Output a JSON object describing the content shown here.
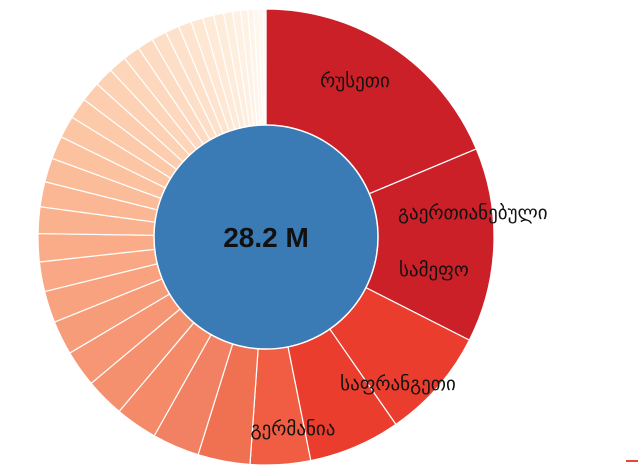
{
  "chart_data": {
    "type": "pie",
    "center_value": "28.2 M",
    "slices": [
      {
        "label": "რუსეთი",
        "value": 5.26,
        "color": "#cb2027"
      },
      {
        "label": "გაერთიანებული სამეფო",
        "value": 3.88,
        "color": "#cb2027"
      },
      {
        "label": "საფრანგეთი",
        "value": 2.22,
        "color": "#ea3d2d"
      },
      {
        "label": "გერმანია",
        "value": 1.83,
        "color": "#ea3d2d"
      },
      {
        "label": "",
        "value": 1.2,
        "color": "#f05d42"
      },
      {
        "label": "",
        "value": 1.04,
        "color": "#f07152"
      },
      {
        "label": "",
        "value": 0.94,
        "color": "#f28062"
      },
      {
        "label": "",
        "value": 0.84,
        "color": "#f48a68"
      },
      {
        "label": "",
        "value": 0.78,
        "color": "#f5906e"
      },
      {
        "label": "",
        "value": 0.73,
        "color": "#f69674"
      },
      {
        "label": "",
        "value": 0.68,
        "color": "#f79c79"
      },
      {
        "label": "",
        "value": 0.63,
        "color": "#f8a27f"
      },
      {
        "label": "",
        "value": 0.59,
        "color": "#f9a784"
      },
      {
        "label": "",
        "value": 0.56,
        "color": "#faac89"
      },
      {
        "label": "",
        "value": 0.53,
        "color": "#fab28e"
      },
      {
        "label": "",
        "value": 0.5,
        "color": "#fbb794"
      },
      {
        "label": "",
        "value": 0.48,
        "color": "#fbbc99"
      },
      {
        "label": "",
        "value": 0.46,
        "color": "#fcc19f"
      },
      {
        "label": "",
        "value": 0.44,
        "color": "#fcc5a4"
      },
      {
        "label": "",
        "value": 0.42,
        "color": "#fcc9a9"
      },
      {
        "label": "",
        "value": 0.4,
        "color": "#fccdaf"
      },
      {
        "label": "",
        "value": 0.38,
        "color": "#fdd1b4"
      },
      {
        "label": "",
        "value": 0.36,
        "color": "#fdd5b9"
      },
      {
        "label": "",
        "value": 0.34,
        "color": "#fdd8be"
      },
      {
        "label": "",
        "value": 0.32,
        "color": "#fddbc3"
      },
      {
        "label": "",
        "value": 0.3,
        "color": "#fddec7"
      },
      {
        "label": "",
        "value": 0.28,
        "color": "#fee1cb"
      },
      {
        "label": "",
        "value": 0.26,
        "color": "#fee4cf"
      },
      {
        "label": "",
        "value": 0.24,
        "color": "#fee7d3"
      },
      {
        "label": "",
        "value": 0.22,
        "color": "#feead7"
      },
      {
        "label": "",
        "value": 0.2,
        "color": "#feecdb"
      },
      {
        "label": "",
        "value": 0.18,
        "color": "#feeede"
      },
      {
        "label": "",
        "value": 0.16,
        "color": "#fef0e2"
      },
      {
        "label": "",
        "value": 0.14,
        "color": "#fef2e5"
      },
      {
        "label": "",
        "value": 0.12,
        "color": "#fef4e9"
      },
      {
        "label": "",
        "value": 0.1,
        "color": "#fff6ec"
      },
      {
        "label": "",
        "value": 0.08,
        "color": "#fff8f0"
      },
      {
        "label": "",
        "value": 0.06,
        "color": "#fff9f3"
      }
    ],
    "center_color": "#3a7ab5",
    "title": "",
    "xlabel": "",
    "ylabel": ""
  }
}
